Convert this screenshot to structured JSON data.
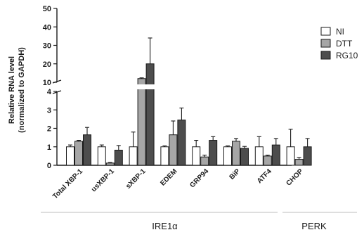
{
  "chart_data": {
    "type": "bar",
    "ylabel_line1": "Relative RNA level",
    "ylabel_line2": "(normalized to  GAPDH)",
    "yticks_upper": [
      "10",
      "20",
      "30",
      "40",
      "50"
    ],
    "yticks_lower": [
      "0",
      "1",
      "2",
      "3",
      "4"
    ],
    "ylim_lower": [
      0,
      4
    ],
    "ylim_upper": [
      10,
      50
    ],
    "axis_break": true,
    "categories": [
      "Total XBP-1",
      "usXBP-1",
      "sXBP-1",
      "EDEM",
      "GRP94",
      "BiP",
      "ATF4",
      "CHOP"
    ],
    "series": [
      {
        "name": "NI",
        "values": [
          1.0,
          1.0,
          1.0,
          1.0,
          1.0,
          1.0,
          1.0,
          1.0
        ],
        "errors": [
          0.1,
          0.1,
          0.8,
          0.05,
          0.35,
          0.05,
          0.55,
          0.95
        ]
      },
      {
        "name": "DTT",
        "values": [
          1.3,
          0.12,
          12,
          1.65,
          0.45,
          1.3,
          0.5,
          0.32
        ],
        "errors": [
          0.05,
          0.03,
          0.4,
          0.75,
          0.1,
          0.15,
          0.05,
          0.1
        ]
      },
      {
        "name": "RG10",
        "values": [
          1.65,
          0.82,
          20,
          2.45,
          1.35,
          0.92,
          1.1,
          1.0
        ],
        "errors": [
          0.4,
          0.25,
          14,
          0.65,
          0.2,
          0.1,
          0.35,
          0.45
        ]
      }
    ],
    "colors": [
      "#ffffff",
      "#a6a6a6",
      "#4d4d4d"
    ],
    "groups": [
      {
        "label": "IRE1α",
        "categories": [
          0,
          5
        ]
      },
      {
        "label": "PERK",
        "categories": [
          6,
          7
        ]
      }
    ],
    "legend_placement": "top-right",
    "grid": false
  }
}
